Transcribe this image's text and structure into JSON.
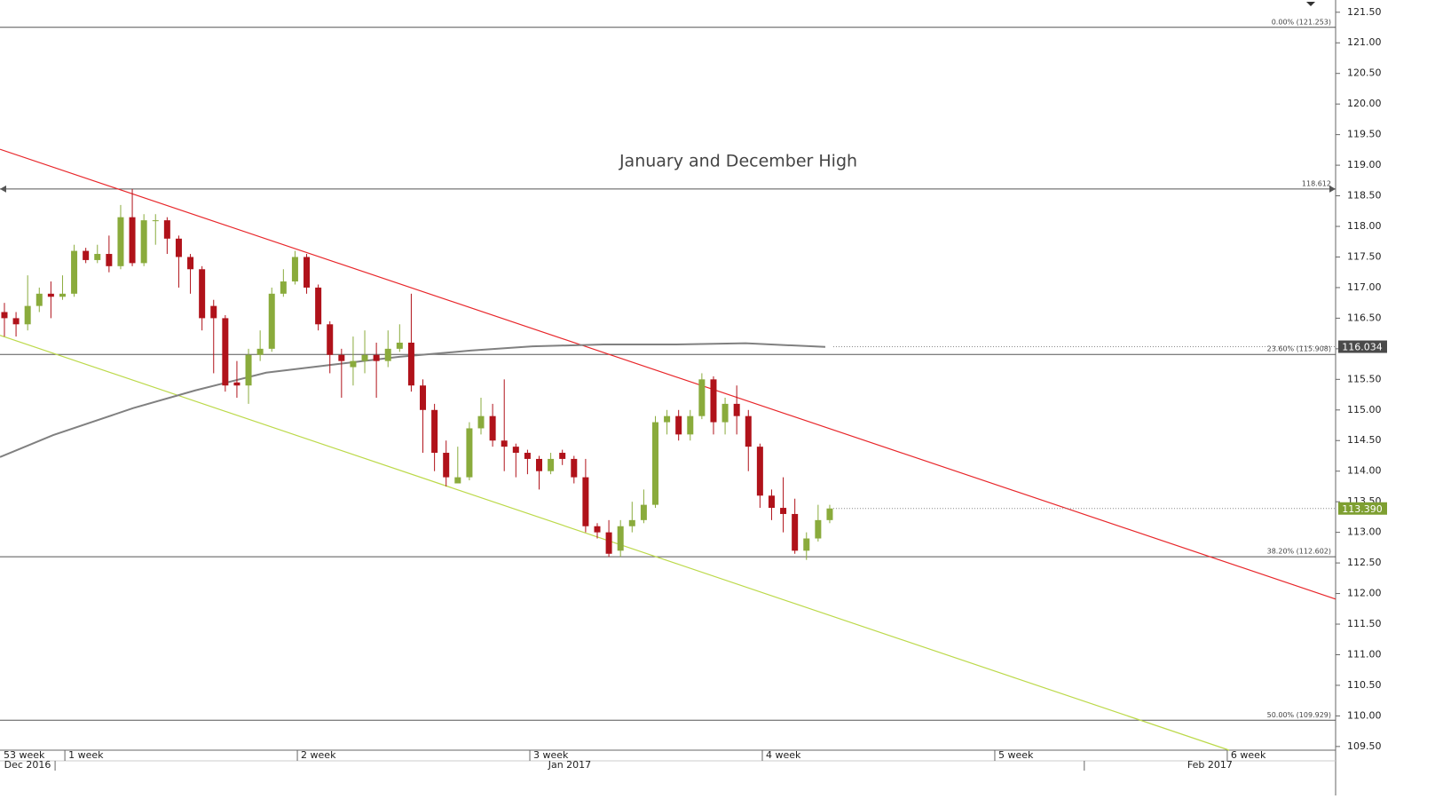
{
  "chart_data": {
    "type": "candlestick",
    "annotation": "January and December High",
    "up_color": "#8aab3c",
    "down_color": "#b0121a",
    "xlim": [
      -0.279,
      5.466
    ],
    "ylim": [
      109.44,
      121.7
    ],
    "yticks": [
      {
        "value": 109.5,
        "label": "109.50"
      },
      {
        "value": 110,
        "label": "110.00"
      },
      {
        "value": 110.5,
        "label": "110.50"
      },
      {
        "value": 111,
        "label": "111.00"
      },
      {
        "value": 111.5,
        "label": "111.50"
      },
      {
        "value": 112,
        "label": "112.00"
      },
      {
        "value": 112.5,
        "label": "112.50"
      },
      {
        "value": 113,
        "label": "113.00"
      },
      {
        "value": 113.5,
        "label": "113.50"
      },
      {
        "value": 114,
        "label": "114.00"
      },
      {
        "value": 114.5,
        "label": "114.50"
      },
      {
        "value": 115,
        "label": "115.00"
      },
      {
        "value": 115.5,
        "label": "115.50"
      },
      {
        "value": 116,
        "label": "116.00"
      },
      {
        "value": 116.5,
        "label": "116.50"
      },
      {
        "value": 117,
        "label": "117.00"
      },
      {
        "value": 117.5,
        "label": "117.50"
      },
      {
        "value": 118,
        "label": "118.00"
      },
      {
        "value": 118.5,
        "label": "118.50"
      },
      {
        "value": 119,
        "label": "119.00"
      },
      {
        "value": 119.5,
        "label": "119.50"
      },
      {
        "value": 120,
        "label": "120.00"
      },
      {
        "value": 120.5,
        "label": "120.50"
      },
      {
        "value": 121,
        "label": "121.00"
      },
      {
        "value": 121.5,
        "label": "121.50"
      }
    ],
    "xticks": [
      {
        "value": -1,
        "label": "53 week"
      },
      {
        "value": 0,
        "label": "1 week"
      },
      {
        "value": 1,
        "label": "2 week"
      },
      {
        "value": 2,
        "label": "3 week"
      },
      {
        "value": 3,
        "label": "4 week"
      },
      {
        "value": 4,
        "label": "5 week"
      },
      {
        "value": 5,
        "label": "6 week"
      }
    ],
    "month_ticks": [
      {
        "value": -4.47,
        "label": "Dec 2016"
      },
      {
        "value": -0.042,
        "label": "Jan 2017"
      },
      {
        "value": 4.385,
        "label": "Feb 2017"
      }
    ],
    "x": [
      -0.26,
      -0.21,
      -0.16,
      -0.11,
      -0.06,
      -0.01,
      0.04,
      0.09,
      0.14,
      0.19,
      0.24,
      0.29,
      0.34,
      0.39,
      0.44,
      0.49,
      0.54,
      0.59,
      0.64,
      0.69,
      0.74,
      0.79,
      0.84,
      0.89,
      0.94,
      0.99,
      1.04,
      1.09,
      1.14,
      1.19,
      1.24,
      1.29,
      1.34,
      1.39,
      1.44,
      1.49,
      1.54,
      1.59,
      1.64,
      1.69,
      1.74,
      1.79,
      1.84,
      1.89,
      1.94,
      1.99,
      2.04,
      2.09,
      2.14,
      2.19,
      2.24,
      2.29,
      2.34,
      2.39,
      2.44,
      2.49,
      2.54,
      2.59,
      2.64,
      2.69,
      2.74,
      2.79,
      2.84,
      2.89,
      2.94,
      2.99,
      3.04,
      3.09,
      3.14,
      3.19,
      3.24,
      3.29
    ],
    "open": [
      116.6,
      116.5,
      116.4,
      116.7,
      116.9,
      116.85,
      116.9,
      117.6,
      117.45,
      117.55,
      117.35,
      118.15,
      117.4,
      118.1,
      118.1,
      117.8,
      117.5,
      117.3,
      116.7,
      116.5,
      115.45,
      115.4,
      115.9,
      116.0,
      116.9,
      117.1,
      117.5,
      117.0,
      116.4,
      115.9,
      115.7,
      115.8,
      115.9,
      115.8,
      116.0,
      116.1,
      115.4,
      115.0,
      114.3,
      113.8,
      113.9,
      114.7,
      114.9,
      114.5,
      114.4,
      114.3,
      114.2,
      114.0,
      114.3,
      114.2,
      113.9,
      113.1,
      113.0,
      112.7,
      113.1,
      113.2,
      113.45,
      114.8,
      114.9,
      114.6,
      114.9,
      115.5,
      114.8,
      115.1,
      114.9,
      114.4,
      113.6,
      113.4,
      113.3,
      112.7,
      112.9,
      113.2
    ],
    "high": [
      116.75,
      116.6,
      117.2,
      117.0,
      117.1,
      117.2,
      117.7,
      117.65,
      117.7,
      117.85,
      118.35,
      118.61,
      118.2,
      118.2,
      118.15,
      117.85,
      117.55,
      117.35,
      116.8,
      116.55,
      115.8,
      116.0,
      116.3,
      117.0,
      117.3,
      117.6,
      117.55,
      117.05,
      116.45,
      116.0,
      116.2,
      116.3,
      116.1,
      116.3,
      116.4,
      116.9,
      115.5,
      115.1,
      114.5,
      114.4,
      114.8,
      115.2,
      115.1,
      115.5,
      114.45,
      114.35,
      114.25,
      114.3,
      114.35,
      114.25,
      114.2,
      113.15,
      113.2,
      113.2,
      113.5,
      113.7,
      114.9,
      115.0,
      115.0,
      115.0,
      115.6,
      115.55,
      115.2,
      115.4,
      115.0,
      114.45,
      113.7,
      113.9,
      113.55,
      113.0,
      113.45,
      113.45
    ],
    "low": [
      116.2,
      116.2,
      116.3,
      116.6,
      116.5,
      116.8,
      116.85,
      117.4,
      117.4,
      117.25,
      117.3,
      117.35,
      117.35,
      117.7,
      117.55,
      117.0,
      116.9,
      116.3,
      115.6,
      115.3,
      115.2,
      115.1,
      115.8,
      115.95,
      116.85,
      117.05,
      116.9,
      116.3,
      115.6,
      115.2,
      115.4,
      115.6,
      115.2,
      115.7,
      115.95,
      115.3,
      114.3,
      114.0,
      113.75,
      113.8,
      113.85,
      114.6,
      114.4,
      114.0,
      113.9,
      113.95,
      113.7,
      113.95,
      114.1,
      113.8,
      113.0,
      112.9,
      112.6,
      112.6,
      113.0,
      113.15,
      113.4,
      114.6,
      114.5,
      114.5,
      114.85,
      114.6,
      114.6,
      114.6,
      114.0,
      113.4,
      113.2,
      113.0,
      112.65,
      112.55,
      112.85,
      113.15
    ],
    "close": [
      116.5,
      116.4,
      116.7,
      116.9,
      116.85,
      116.9,
      117.6,
      117.45,
      117.55,
      117.35,
      118.15,
      117.4,
      118.1,
      118.1,
      117.8,
      117.5,
      117.3,
      116.5,
      116.5,
      115.4,
      115.4,
      115.9,
      116.0,
      116.9,
      117.1,
      117.5,
      117.0,
      116.4,
      115.9,
      115.8,
      115.8,
      115.9,
      115.8,
      116.0,
      116.1,
      115.4,
      115.0,
      114.3,
      113.9,
      113.9,
      114.7,
      114.9,
      114.5,
      114.4,
      114.3,
      114.2,
      114.0,
      114.2,
      114.2,
      113.9,
      113.1,
      113.0,
      112.65,
      113.1,
      113.2,
      113.45,
      114.8,
      114.9,
      114.6,
      114.9,
      115.5,
      114.8,
      115.1,
      114.9,
      114.4,
      113.6,
      113.4,
      113.3,
      112.7,
      112.9,
      113.2,
      113.39
    ],
    "moving_average": {
      "color": "#808080",
      "x": [
        -0.279,
        -0.05,
        0.294,
        0.561,
        0.866,
        1.172,
        1.439,
        1.744,
        2.011,
        2.317,
        2.622,
        2.928,
        3.271
      ],
      "values": [
        114.23,
        114.59,
        115.03,
        115.32,
        115.61,
        115.75,
        115.87,
        115.97,
        116.04,
        116.07,
        116.07,
        116.09,
        116.03
      ]
    },
    "trendlines": [
      {
        "color": "#e8262a",
        "x": [
          -0.279,
          5.466
        ],
        "values": [
          119.26,
          111.91
        ]
      },
      {
        "color": "#bcd94a",
        "x": [
          -0.279,
          5.008
        ],
        "values": [
          116.22,
          109.44
        ]
      }
    ],
    "levels": [
      {
        "value": 121.253,
        "label": "0.00% (121.253)"
      },
      {
        "value": 118.612,
        "label": "118.612"
      },
      {
        "value": 115.908,
        "label": "23.60% (115.908)"
      },
      {
        "value": 112.602,
        "label": "38.20% (112.602)"
      },
      {
        "value": 109.929,
        "label": "50.00% (109.929)"
      }
    ],
    "price_tags": [
      {
        "value": 116.034,
        "label": "116.034",
        "color": "#4a4a4a"
      },
      {
        "value": 113.39,
        "label": "113.390",
        "color": "#7e9f31"
      }
    ]
  }
}
